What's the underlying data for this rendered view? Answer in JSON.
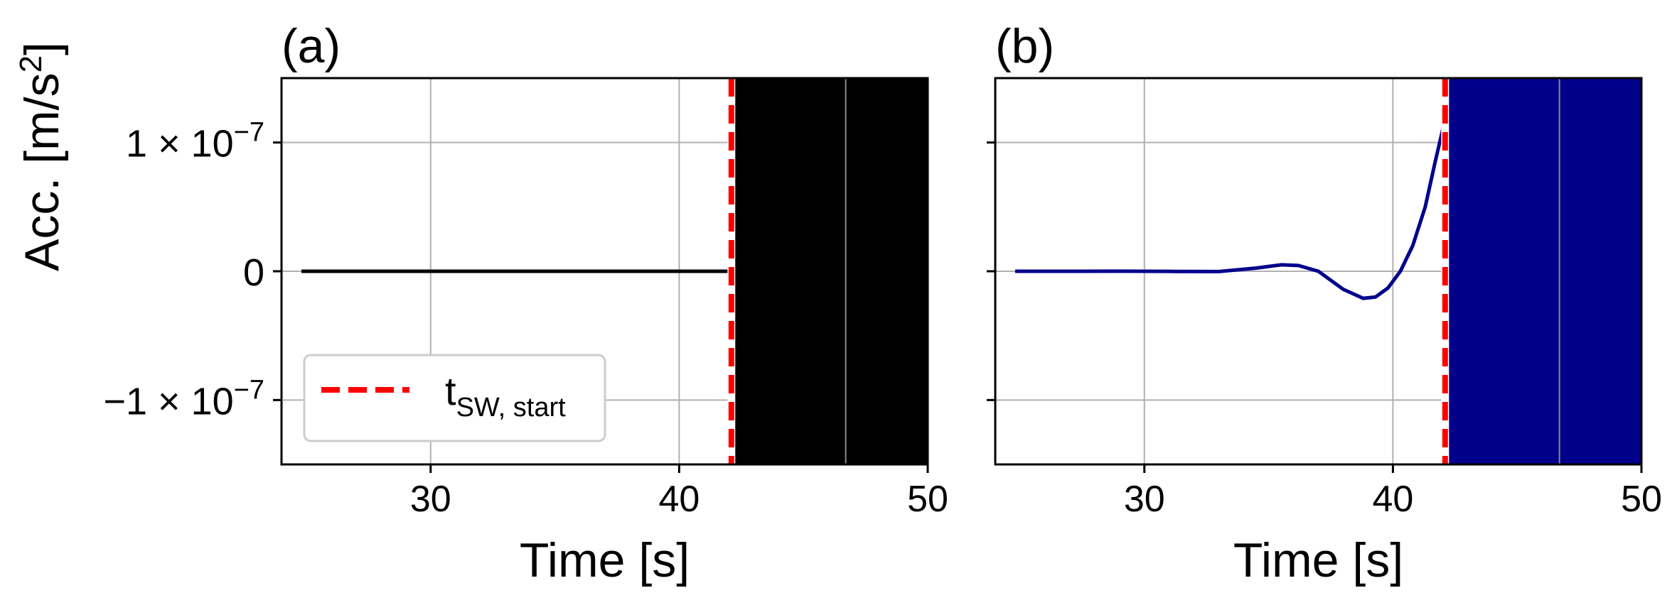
{
  "colors": {
    "panel_a_line": "#000000",
    "panel_b_line": "#00008b",
    "marker": "#ff0000",
    "grid": "#b0b0b0"
  },
  "y_axis": {
    "label_main": "Acc. [m/s",
    "label_sup": "2",
    "label_close": "]",
    "ylim": [
      -1.5e-07,
      1.5e-07
    ],
    "ticks": [
      {
        "value": 1e-07,
        "mantissa": "1 × 10",
        "exponent": "−7"
      },
      {
        "value": 0,
        "mantissa": "0",
        "exponent": ""
      },
      {
        "value": -1e-07,
        "mantissa": "−1 × 10",
        "exponent": "−7"
      }
    ]
  },
  "legend": {
    "placement": "lower-left",
    "label_main": "t",
    "label_sub": "SW, start"
  },
  "chart_data": [
    {
      "type": "line",
      "panel_label": "(a)",
      "xlabel": "Time [s]",
      "xlim": [
        24,
        50
      ],
      "ylim": [
        -1.5e-07,
        1.5e-07
      ],
      "grid": true,
      "xticks": [
        30,
        40,
        50
      ],
      "marker_x": 42.1,
      "marker_label": "t_SW,start",
      "dense_region_x": [
        42.1,
        50
      ],
      "series": [
        {
          "color": "#000000",
          "x": [
            24.8,
            27,
            30,
            33,
            36,
            39,
            42.1
          ],
          "y": [
            0,
            0,
            0,
            0,
            0,
            0,
            0
          ]
        }
      ]
    },
    {
      "type": "line",
      "panel_label": "(b)",
      "xlabel": "Time [s]",
      "xlim": [
        24,
        50
      ],
      "ylim": [
        -1.5e-07,
        1.5e-07
      ],
      "grid": true,
      "xticks": [
        30,
        40,
        50
      ],
      "marker_x": 42.1,
      "dense_region_x": [
        42.1,
        50
      ],
      "series": [
        {
          "color": "#00008b",
          "x": [
            24.8,
            27,
            29,
            31,
            33,
            34.5,
            35.5,
            36.2,
            37,
            38,
            38.8,
            39.3,
            39.8,
            40.3,
            40.8,
            41.3,
            41.7,
            42.1
          ],
          "y": [
            0,
            0,
            1e-10,
            -1e-10,
            -2e-10,
            2.5e-09,
            5e-09,
            4.5e-09,
            0.0,
            -1.4e-08,
            -2.1e-08,
            -2e-08,
            -1.3e-08,
            0.0,
            2e-08,
            5e-08,
            8.5e-08,
            1.18e-07
          ]
        }
      ]
    }
  ]
}
